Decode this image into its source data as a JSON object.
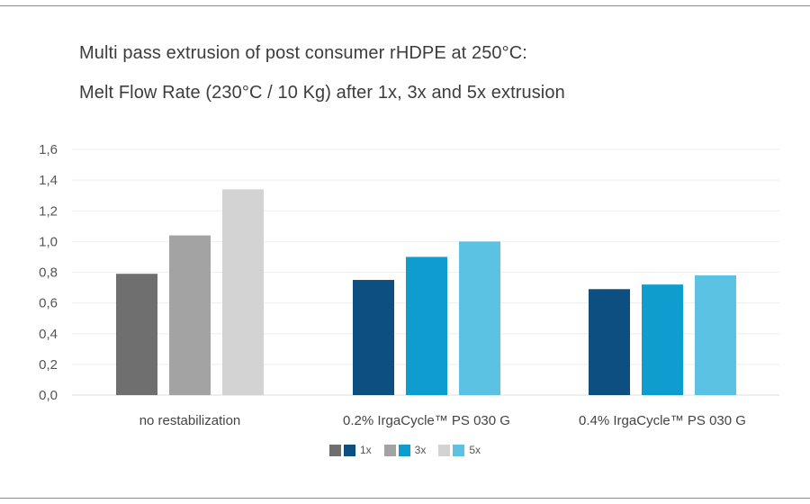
{
  "title_line1": "Multi pass extrusion of post consumer rHDPE at 250°C:",
  "title_line2": "Melt Flow Rate (230°C / 10 Kg) after 1x, 3x and 5x extrusion",
  "chart_data": {
    "type": "bar",
    "categories": [
      "no restabilization",
      "0.2% IrgaCycle™ PS 030 G",
      "0.4% IrgaCycle™ PS 030 G"
    ],
    "series": [
      {
        "name": "1x",
        "values": [
          0.79,
          0.75,
          0.69
        ]
      },
      {
        "name": "3x",
        "values": [
          1.04,
          0.9,
          0.72
        ]
      },
      {
        "name": "5x",
        "values": [
          1.34,
          1.0,
          0.78
        ]
      }
    ],
    "ylim": [
      0,
      1.6
    ],
    "yticks": [
      "0,0",
      "0,2",
      "0,4",
      "0,6",
      "0,8",
      "1,0",
      "1,2",
      "1,4",
      "1,6"
    ],
    "grid": true,
    "legend_position": "bottom",
    "colors": {
      "no restabilization": [
        "#6f6f6f",
        "#a3a3a3",
        "#d3d3d3"
      ],
      "stabilized": [
        "#0d4f80",
        "#0f9ccf",
        "#5cc2e4"
      ]
    }
  }
}
